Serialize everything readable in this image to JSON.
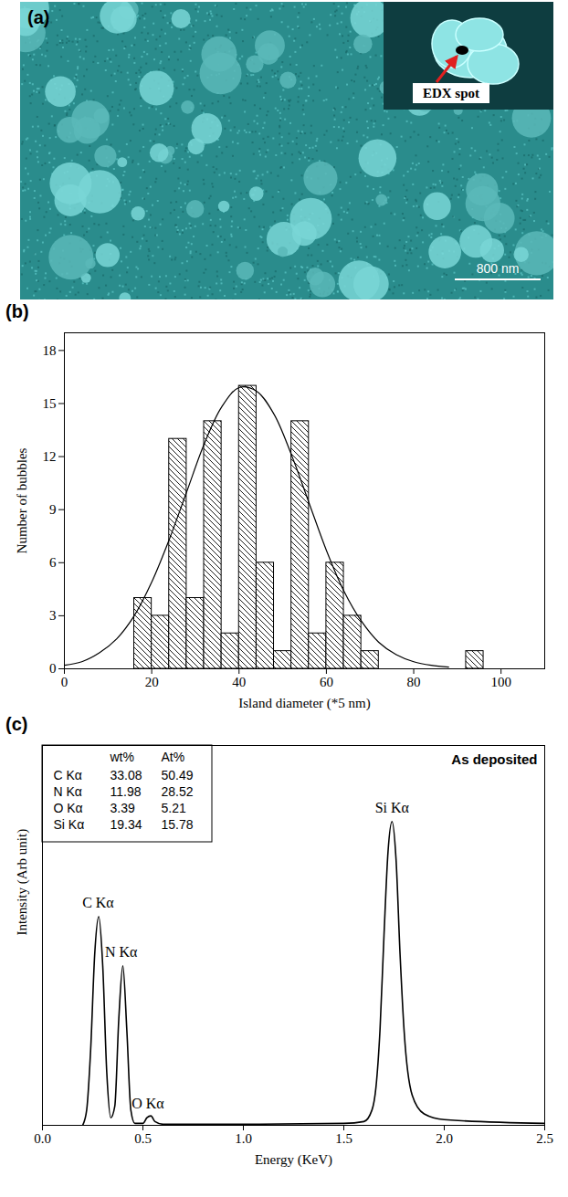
{
  "chart_data": [
    {
      "type": "image",
      "title": "(a)",
      "annotations": [
        "EDX spot"
      ],
      "scale_bar": "800 nm"
    },
    {
      "type": "histogram",
      "title": "(b)",
      "xlabel": "Island diameter (*5 nm)",
      "ylabel": "Number of bubbles",
      "bins": [
        16,
        20,
        24,
        28,
        32,
        36,
        40,
        44,
        48,
        52,
        56,
        60,
        64,
        68,
        72,
        76,
        80,
        84,
        88,
        92,
        96
      ],
      "values": [
        4,
        3,
        13,
        4,
        14,
        2,
        16,
        6,
        1,
        14,
        2,
        6,
        3,
        1,
        0,
        0,
        0,
        0,
        0,
        1
      ],
      "fit": {
        "x": [
          0,
          4,
          8,
          12,
          16,
          20,
          24,
          28,
          32,
          36,
          40,
          44,
          48,
          52,
          56,
          60,
          64,
          68,
          72,
          76,
          80,
          84,
          88
        ],
        "values": [
          0.2,
          0.4,
          0.9,
          1.7,
          3.0,
          4.9,
          7.3,
          10.0,
          12.7,
          14.8,
          15.9,
          15.7,
          14.4,
          12.1,
          9.4,
          6.7,
          4.4,
          2.7,
          1.5,
          0.8,
          0.4,
          0.2,
          0.1
        ]
      },
      "color": "#000000",
      "xlim": [
        0,
        110
      ],
      "xticks": [
        0,
        20,
        40,
        60,
        80,
        100
      ],
      "ylim": [
        0,
        19
      ],
      "yticks": [
        0,
        3,
        6,
        9,
        12,
        15,
        18
      ]
    },
    {
      "type": "line",
      "title": "(c)",
      "subtitle": "As deposited",
      "xlabel": "Energy (KeV)",
      "ylabel": "Intensity (Arb unit)",
      "x": [
        0.2,
        0.22,
        0.24,
        0.26,
        0.28,
        0.3,
        0.32,
        0.34,
        0.36,
        0.38,
        0.4,
        0.42,
        0.44,
        0.46,
        0.5,
        0.52,
        0.54,
        0.56,
        0.6,
        1.0,
        1.5,
        1.6,
        1.64,
        1.66,
        1.68,
        1.7,
        1.72,
        1.74,
        1.76,
        1.78,
        1.8,
        1.84,
        1.9,
        2.0,
        2.5
      ],
      "values": [
        0,
        4,
        20,
        45,
        55,
        42,
        14,
        2,
        5,
        28,
        42,
        25,
        4,
        0.5,
        0.5,
        2,
        2.5,
        1,
        0.3,
        0.3,
        0.5,
        1,
        4,
        10,
        25,
        50,
        72,
        80,
        70,
        45,
        25,
        8,
        3,
        1.5,
        0.5
      ],
      "color": "#000000",
      "xlim": [
        0,
        2.5
      ],
      "xticks": [
        {
          "value": 0,
          "label": "0.0"
        },
        0.5,
        {
          "value": 1,
          "label": "1.0"
        },
        1.5,
        {
          "value": 2,
          "label": "2.0"
        },
        2.5
      ],
      "ylim": [
        0,
        100
      ],
      "tick_labels": "x",
      "annotations": [
        {
          "text": "C Kα",
          "x": 0.277
        },
        {
          "text": "N Kα",
          "x": 0.392
        },
        {
          "text": "O Kα",
          "x": 0.525
        },
        {
          "text": "Si Kα",
          "x": 1.74
        }
      ],
      "table": {
        "columns": [
          "wt%",
          "At%"
        ],
        "rows": [
          {
            "name": "C Kα",
            "values": [
              33.08,
              50.49
            ]
          },
          {
            "name": "N Kα",
            "values": [
              11.98,
              28.52
            ]
          },
          {
            "name": "O Kα",
            "values": [
              3.39,
              5.21
            ]
          },
          {
            "name": "Si Kα",
            "values": [
              19.34,
              15.78
            ]
          }
        ]
      }
    }
  ]
}
